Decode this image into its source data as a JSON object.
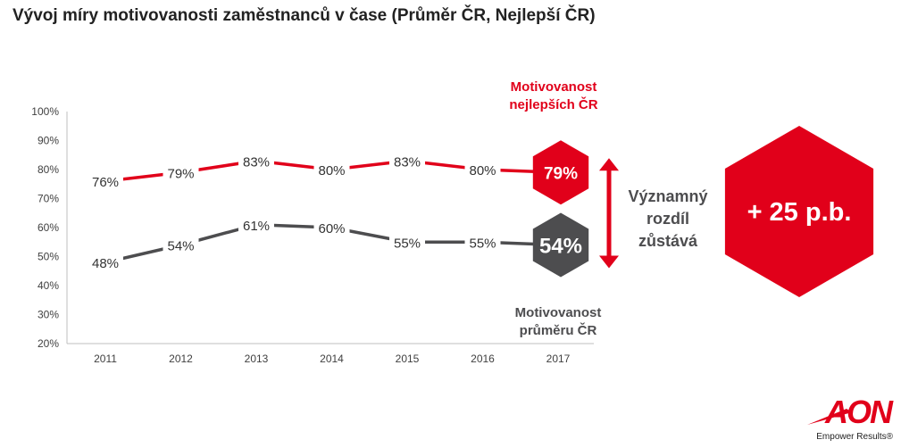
{
  "title": "Vývoj míry motivovanosti zaměstnanců v čase (Průměr ČR, Nejlepší ČR)",
  "annotations": {
    "best_label_line1": "Motivovanost",
    "best_label_line2": "nejlepších ČR",
    "avg_label_line1": "Motivovanost",
    "avg_label_line2": "průměru ČR",
    "diff_line1": "Významný",
    "diff_line2": "rozdíl",
    "diff_line3": "zůstává",
    "gap_badge": "+ 25 p.b."
  },
  "logo": {
    "text": "AON",
    "tagline": "Empower Results®"
  },
  "colors": {
    "red": "#e1001a",
    "dark": "#4d4d4f",
    "axis": "#bfbfbf",
    "text": "#404040"
  },
  "chart_data": {
    "type": "line",
    "categories": [
      "2011",
      "2012",
      "2013",
      "2014",
      "2015",
      "2016",
      "2017"
    ],
    "series": [
      {
        "name": "Motivovanost nejlepších ČR",
        "color": "#e1001a",
        "values": [
          76,
          79,
          83,
          80,
          83,
          80,
          79
        ],
        "labels": [
          "76%",
          "79%",
          "83%",
          "80%",
          "83%",
          "80%",
          "79%"
        ]
      },
      {
        "name": "Motivovanost průměru ČR",
        "color": "#4d4d4f",
        "values": [
          48,
          54,
          61,
          60,
          55,
          55,
          54
        ],
        "labels": [
          "48%",
          "54%",
          "61%",
          "60%",
          "55%",
          "55%",
          "54%"
        ]
      }
    ],
    "yticks": [
      "20%",
      "30%",
      "40%",
      "50%",
      "60%",
      "70%",
      "80%",
      "90%",
      "100%"
    ],
    "ylim": [
      20,
      100
    ],
    "grid": false,
    "xlabel": "",
    "ylabel": ""
  }
}
